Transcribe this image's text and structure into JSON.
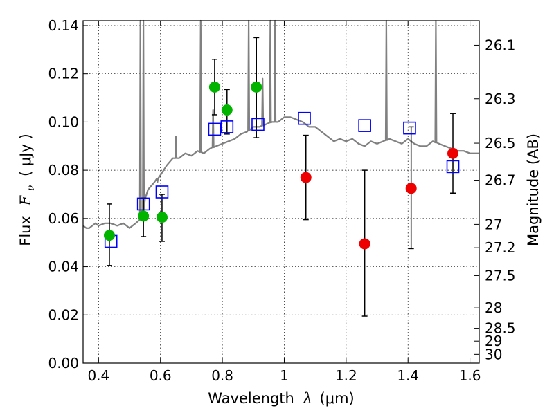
{
  "chart_data": {
    "type": "scatter",
    "title": "",
    "xlabel_text": "Wavelength",
    "xlabel_symbol": "λ",
    "xlabel_unit": "(μm)",
    "ylabel_text": "Flux",
    "ylabel_symbol": "F",
    "ylabel_subscript": "ν",
    "ylabel_unit": "( μJy )",
    "y2label": "Magnitude (AB)",
    "xlim": [
      0.35,
      1.63
    ],
    "ylim": [
      0.0,
      0.142
    ],
    "grid": true,
    "x_ticks": [
      {
        "v": 0.4,
        "label": "0.4"
      },
      {
        "v": 0.6,
        "label": "0.6"
      },
      {
        "v": 0.8,
        "label": "0.8"
      },
      {
        "v": 1.0,
        "label": "1"
      },
      {
        "v": 1.2,
        "label": "1.2"
      },
      {
        "v": 1.4,
        "label": "1.4"
      },
      {
        "v": 1.6,
        "label": "1.6"
      }
    ],
    "y_ticks": [
      {
        "v": 0.0,
        "label": "0.00"
      },
      {
        "v": 0.02,
        "label": "0.02"
      },
      {
        "v": 0.04,
        "label": "0.04"
      },
      {
        "v": 0.06,
        "label": "0.06"
      },
      {
        "v": 0.08,
        "label": "0.08"
      },
      {
        "v": 0.1,
        "label": "0.10"
      },
      {
        "v": 0.12,
        "label": "0.12"
      },
      {
        "v": 0.14,
        "label": "0.14"
      }
    ],
    "y2_ticks": [
      {
        "mag": 26.1,
        "label": "26.1"
      },
      {
        "mag": 26.3,
        "label": "26.3"
      },
      {
        "mag": 26.5,
        "label": "26.5"
      },
      {
        "mag": 26.7,
        "label": "26.7"
      },
      {
        "mag": 27.0,
        "label": "27"
      },
      {
        "mag": 27.2,
        "label": "27.2"
      },
      {
        "mag": 27.5,
        "label": "27.5"
      },
      {
        "mag": 28.0,
        "label": "28"
      },
      {
        "mag": 28.5,
        "label": "28.5"
      },
      {
        "mag": 29.0,
        "label": "29"
      },
      {
        "mag": 30.0,
        "label": "30"
      }
    ],
    "colors": {
      "spectrum": "#808080",
      "model": "#0000ff",
      "detection": "#00b400",
      "ir_detection": "#ee0000",
      "errorbar": "#000000",
      "grid": "#000000"
    },
    "series": [
      {
        "name": "model-spectrum",
        "kind": "line",
        "x": [
          0.35,
          0.36,
          0.37,
          0.38,
          0.39,
          0.4,
          0.42,
          0.44,
          0.46,
          0.48,
          0.5,
          0.52,
          0.54,
          0.55,
          0.56,
          0.58,
          0.6,
          0.62,
          0.64,
          0.66,
          0.68,
          0.7,
          0.72,
          0.74,
          0.76,
          0.78,
          0.8,
          0.82,
          0.84,
          0.86,
          0.88,
          0.9,
          0.92,
          0.94,
          0.96,
          0.98,
          1.0,
          1.02,
          1.04,
          1.06,
          1.08,
          1.1,
          1.12,
          1.14,
          1.16,
          1.18,
          1.2,
          1.22,
          1.24,
          1.26,
          1.28,
          1.3,
          1.32,
          1.34,
          1.36,
          1.38,
          1.4,
          1.42,
          1.44,
          1.46,
          1.48,
          1.5,
          1.52,
          1.54,
          1.56,
          1.58,
          1.6,
          1.63
        ],
        "y": [
          0.057,
          0.056,
          0.056,
          0.057,
          0.058,
          0.057,
          0.058,
          0.058,
          0.057,
          0.058,
          0.056,
          0.058,
          0.06,
          0.068,
          0.072,
          0.075,
          0.078,
          0.082,
          0.085,
          0.085,
          0.087,
          0.086,
          0.088,
          0.087,
          0.089,
          0.09,
          0.091,
          0.092,
          0.093,
          0.095,
          0.096,
          0.098,
          0.098,
          0.099,
          0.1,
          0.1,
          0.102,
          0.102,
          0.101,
          0.1,
          0.098,
          0.098,
          0.096,
          0.094,
          0.092,
          0.093,
          0.092,
          0.093,
          0.091,
          0.09,
          0.092,
          0.091,
          0.092,
          0.093,
          0.092,
          0.091,
          0.093,
          0.091,
          0.09,
          0.09,
          0.092,
          0.091,
          0.09,
          0.089,
          0.088,
          0.088,
          0.087,
          0.087
        ]
      },
      {
        "name": "model-photometry",
        "kind": "open-squares",
        "x": [
          0.44,
          0.545,
          0.605,
          0.775,
          0.815,
          0.915,
          1.065,
          1.26,
          1.405,
          1.545
        ],
        "y": [
          0.0505,
          0.066,
          0.071,
          0.097,
          0.098,
          0.099,
          0.1015,
          0.0985,
          0.0975,
          0.0815
        ]
      },
      {
        "name": "optical-detections",
        "kind": "filled-circles",
        "x": [
          0.435,
          0.545,
          0.605,
          0.775,
          0.815,
          0.91
        ],
        "y": [
          0.053,
          0.061,
          0.0605,
          0.1145,
          0.105,
          0.1145
        ],
        "err_low": [
          0.0405,
          0.0525,
          0.0505,
          0.103,
          0.095,
          0.0935
        ],
        "err_high": [
          0.066,
          0.0685,
          0.07,
          0.126,
          0.1135,
          0.135
        ]
      },
      {
        "name": "infrared-detections",
        "kind": "filled-circles",
        "x": [
          1.07,
          1.26,
          1.41,
          1.545
        ],
        "y": [
          0.077,
          0.0495,
          0.0725,
          0.087
        ],
        "err_low": [
          0.0595,
          0.0195,
          0.0475,
          0.0705
        ],
        "err_high": [
          0.0945,
          0.08,
          0.098,
          0.1035
        ]
      }
    ],
    "emission_spikes": [
      {
        "x": 0.535,
        "peak": 0.142
      },
      {
        "x": 0.545,
        "peak": 0.142
      },
      {
        "x": 0.59,
        "peak": 0.075
      },
      {
        "x": 0.65,
        "peak": 0.094
      },
      {
        "x": 0.73,
        "peak": 0.142
      },
      {
        "x": 0.77,
        "peak": 0.105
      },
      {
        "x": 0.885,
        "peak": 0.142
      },
      {
        "x": 0.93,
        "peak": 0.118
      },
      {
        "x": 0.955,
        "peak": 0.142
      },
      {
        "x": 0.97,
        "peak": 0.142
      },
      {
        "x": 1.33,
        "peak": 0.142
      },
      {
        "x": 1.49,
        "peak": 0.142
      }
    ]
  }
}
